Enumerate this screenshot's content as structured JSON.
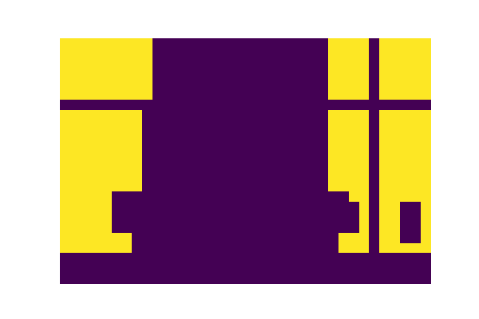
{
  "chart_data": {
    "type": "heatmap",
    "color": "viridis",
    "tick_labels": false,
    "cells": [
      [
        1,
        1,
        1,
        1,
        1,
        1,
        1,
        1,
        1,
        0,
        0,
        0,
        0,
        0,
        0,
        0,
        0,
        0,
        0,
        0,
        0,
        0,
        0,
        0,
        0,
        0,
        1,
        1,
        1,
        1,
        0,
        1,
        1,
        1,
        1,
        1
      ],
      [
        1,
        1,
        1,
        1,
        1,
        1,
        1,
        1,
        1,
        0,
        0,
        0,
        0,
        0,
        0,
        0,
        0,
        0,
        0,
        0,
        0,
        0,
        0,
        0,
        0,
        0,
        1,
        1,
        1,
        1,
        0,
        1,
        1,
        1,
        1,
        1
      ],
      [
        1,
        1,
        1,
        1,
        1,
        1,
        1,
        1,
        1,
        0,
        0,
        0,
        0,
        0,
        0,
        0,
        0,
        0,
        0,
        0,
        0,
        0,
        0,
        0,
        0,
        0,
        1,
        1,
        1,
        1,
        0,
        1,
        1,
        1,
        1,
        1
      ],
      [
        1,
        1,
        1,
        1,
        1,
        1,
        1,
        1,
        1,
        0,
        0,
        0,
        0,
        0,
        0,
        0,
        0,
        0,
        0,
        0,
        0,
        0,
        0,
        0,
        0,
        0,
        1,
        1,
        1,
        1,
        0,
        1,
        1,
        1,
        1,
        1
      ],
      [
        1,
        1,
        1,
        1,
        1,
        1,
        1,
        1,
        1,
        0,
        0,
        0,
        0,
        0,
        0,
        0,
        0,
        0,
        0,
        0,
        0,
        0,
        0,
        0,
        0,
        0,
        1,
        1,
        1,
        1,
        0,
        1,
        1,
        1,
        1,
        1
      ],
      [
        1,
        1,
        1,
        1,
        1,
        1,
        1,
        1,
        1,
        0,
        0,
        0,
        0,
        0,
        0,
        0,
        0,
        0,
        0,
        0,
        0,
        0,
        0,
        0,
        0,
        0,
        1,
        1,
        1,
        1,
        0,
        1,
        1,
        1,
        1,
        1
      ],
      [
        0,
        0,
        0,
        0,
        0,
        0,
        0,
        0,
        0,
        0,
        0,
        0,
        0,
        0,
        0,
        0,
        0,
        0,
        0,
        0,
        0,
        0,
        0,
        0,
        0,
        0,
        0,
        0,
        0,
        0,
        0,
        0,
        0,
        0,
        0,
        0
      ],
      [
        1,
        1,
        1,
        1,
        1,
        1,
        1,
        1,
        0,
        0,
        0,
        0,
        0,
        0,
        0,
        0,
        0,
        0,
        0,
        0,
        0,
        0,
        0,
        0,
        0,
        0,
        1,
        1,
        1,
        1,
        0,
        1,
        1,
        1,
        1,
        1
      ],
      [
        1,
        1,
        1,
        1,
        1,
        1,
        1,
        1,
        0,
        0,
        0,
        0,
        0,
        0,
        0,
        0,
        0,
        0,
        0,
        0,
        0,
        0,
        0,
        0,
        0,
        0,
        1,
        1,
        1,
        1,
        0,
        1,
        1,
        1,
        1,
        1
      ],
      [
        1,
        1,
        1,
        1,
        1,
        1,
        1,
        1,
        0,
        0,
        0,
        0,
        0,
        0,
        0,
        0,
        0,
        0,
        0,
        0,
        0,
        0,
        0,
        0,
        0,
        0,
        1,
        1,
        1,
        1,
        0,
        1,
        1,
        1,
        1,
        1
      ],
      [
        1,
        1,
        1,
        1,
        1,
        1,
        1,
        1,
        0,
        0,
        0,
        0,
        0,
        0,
        0,
        0,
        0,
        0,
        0,
        0,
        0,
        0,
        0,
        0,
        0,
        0,
        1,
        1,
        1,
        1,
        0,
        1,
        1,
        1,
        1,
        1
      ],
      [
        1,
        1,
        1,
        1,
        1,
        1,
        1,
        1,
        0,
        0,
        0,
        0,
        0,
        0,
        0,
        0,
        0,
        0,
        0,
        0,
        0,
        0,
        0,
        0,
        0,
        0,
        1,
        1,
        1,
        1,
        0,
        1,
        1,
        1,
        1,
        1
      ],
      [
        1,
        1,
        1,
        1,
        1,
        1,
        1,
        1,
        0,
        0,
        0,
        0,
        0,
        0,
        0,
        0,
        0,
        0,
        0,
        0,
        0,
        0,
        0,
        0,
        0,
        0,
        1,
        1,
        1,
        1,
        0,
        1,
        1,
        1,
        1,
        1
      ],
      [
        1,
        1,
        1,
        1,
        1,
        1,
        1,
        1,
        0,
        0,
        0,
        0,
        0,
        0,
        0,
        0,
        0,
        0,
        0,
        0,
        0,
        0,
        0,
        0,
        0,
        0,
        1,
        1,
        1,
        1,
        0,
        1,
        1,
        1,
        1,
        1
      ],
      [
        1,
        1,
        1,
        1,
        1,
        1,
        1,
        1,
        0,
        0,
        0,
        0,
        0,
        0,
        0,
        0,
        0,
        0,
        0,
        0,
        0,
        0,
        0,
        0,
        0,
        0,
        1,
        1,
        1,
        1,
        0,
        1,
        1,
        1,
        1,
        1
      ],
      [
        1,
        1,
        1,
        1,
        1,
        0,
        0,
        0,
        0,
        0,
        0,
        0,
        0,
        0,
        0,
        0,
        0,
        0,
        0,
        0,
        0,
        0,
        0,
        0,
        0,
        0,
        0,
        0,
        1,
        1,
        0,
        1,
        1,
        1,
        1,
        1
      ],
      [
        1,
        1,
        1,
        1,
        1,
        0,
        0,
        0,
        0,
        0,
        0,
        0,
        0,
        0,
        0,
        0,
        0,
        0,
        0,
        0,
        0,
        0,
        0,
        0,
        0,
        0,
        0,
        0,
        0,
        1,
        0,
        1,
        1,
        0,
        0,
        1
      ],
      [
        1,
        1,
        1,
        1,
        1,
        0,
        0,
        0,
        0,
        0,
        0,
        0,
        0,
        0,
        0,
        0,
        0,
        0,
        0,
        0,
        0,
        0,
        0,
        0,
        0,
        0,
        0,
        0,
        0,
        1,
        0,
        1,
        1,
        0,
        0,
        1
      ],
      [
        1,
        1,
        1,
        1,
        1,
        0,
        0,
        0,
        0,
        0,
        0,
        0,
        0,
        0,
        0,
        0,
        0,
        0,
        0,
        0,
        0,
        0,
        0,
        0,
        0,
        0,
        0,
        0,
        0,
        1,
        0,
        1,
        1,
        0,
        0,
        1
      ],
      [
        1,
        1,
        1,
        1,
        1,
        1,
        1,
        0,
        0,
        0,
        0,
        0,
        0,
        0,
        0,
        0,
        0,
        0,
        0,
        0,
        0,
        0,
        0,
        0,
        0,
        0,
        0,
        1,
        1,
        1,
        0,
        1,
        1,
        0,
        0,
        1
      ],
      [
        1,
        1,
        1,
        1,
        1,
        1,
        1,
        0,
        0,
        0,
        0,
        0,
        0,
        0,
        0,
        0,
        0,
        0,
        0,
        0,
        0,
        0,
        0,
        0,
        0,
        0,
        0,
        1,
        1,
        1,
        0,
        1,
        1,
        1,
        1,
        1
      ],
      [
        0,
        0,
        0,
        0,
        0,
        0,
        0,
        0,
        0,
        0,
        0,
        0,
        0,
        0,
        0,
        0,
        0,
        0,
        0,
        0,
        0,
        0,
        0,
        0,
        0,
        0,
        0,
        0,
        0,
        0,
        0,
        0,
        0,
        0,
        0,
        0
      ],
      [
        0,
        0,
        0,
        0,
        0,
        0,
        0,
        0,
        0,
        0,
        0,
        0,
        0,
        0,
        0,
        0,
        0,
        0,
        0,
        0,
        0,
        0,
        0,
        0,
        0,
        0,
        0,
        0,
        0,
        0,
        0,
        0,
        0,
        0,
        0,
        0
      ],
      [
        0,
        0,
        0,
        0,
        0,
        0,
        0,
        0,
        0,
        0,
        0,
        0,
        0,
        0,
        0,
        0,
        0,
        0,
        0,
        0,
        0,
        0,
        0,
        0,
        0,
        0,
        0,
        0,
        0,
        0,
        0,
        0,
        0,
        0,
        0,
        0
      ]
    ]
  }
}
